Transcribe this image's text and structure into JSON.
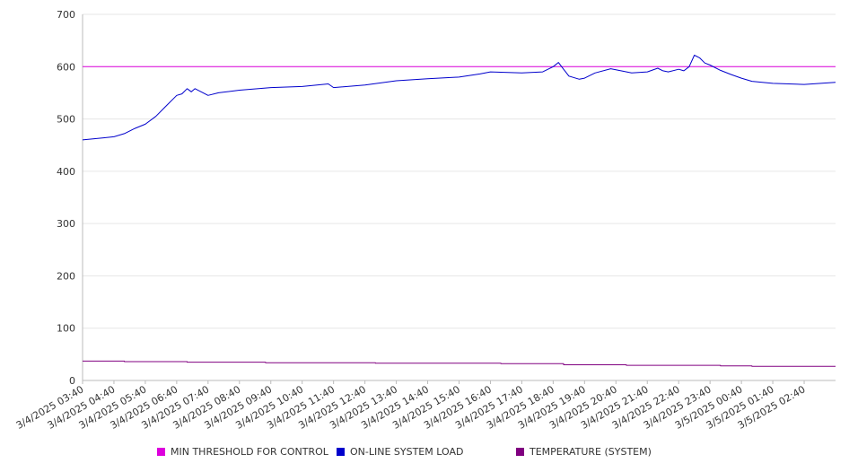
{
  "chart_data": {
    "type": "line",
    "title": "",
    "xlabel": "",
    "ylabel": "",
    "ylim": [
      0,
      700
    ],
    "yticks": [
      "0",
      "100",
      "200",
      "300",
      "400",
      "500",
      "600",
      "700"
    ],
    "x_tick_labels": [
      "3/4/2025 03:40",
      "3/4/2025 04:40",
      "3/4/2025 05:40",
      "3/4/2025 06:40",
      "3/4/2025 07:40",
      "3/4/2025 08:40",
      "3/4/2025 09:40",
      "3/4/2025 10:40",
      "3/4/2025 11:40",
      "3/4/2025 12:40",
      "3/4/2025 13:40",
      "3/4/2025 14:40",
      "3/4/2025 15:40",
      "3/4/2025 16:40",
      "3/4/2025 17:40",
      "3/4/2025 18:40",
      "3/4/2025 19:40",
      "3/4/2025 20:40",
      "3/4/2025 21:40",
      "3/4/2025 22:40",
      "3/4/2025 23:40",
      "3/5/2025 00:40",
      "3/5/2025 01:40",
      "3/5/2025 02:40"
    ],
    "grid": true,
    "legend_position": "bottom",
    "series": [
      {
        "name": "MIN THRESHOLD FOR CONTROL",
        "color": "#dd00dd",
        "step": false,
        "points": [
          [
            "3/4/2025 03:40",
            600
          ],
          [
            "3/5/2025 03:40",
            600
          ]
        ]
      },
      {
        "name": "ON-LINE SYSTEM LOAD",
        "color": "#0000cc",
        "step": false,
        "points": [
          [
            "3/4/2025 03:40",
            460
          ],
          [
            "3/4/2025 04:00",
            462
          ],
          [
            "3/4/2025 04:20",
            464
          ],
          [
            "3/4/2025 04:40",
            466
          ],
          [
            "3/4/2025 05:00",
            472
          ],
          [
            "3/4/2025 05:20",
            482
          ],
          [
            "3/4/2025 05:40",
            490
          ],
          [
            "3/4/2025 06:00",
            505
          ],
          [
            "3/4/2025 06:20",
            525
          ],
          [
            "3/4/2025 06:40",
            545
          ],
          [
            "3/4/2025 06:50",
            548
          ],
          [
            "3/4/2025 07:00",
            558
          ],
          [
            "3/4/2025 07:08",
            552
          ],
          [
            "3/4/2025 07:15",
            558
          ],
          [
            "3/4/2025 07:40",
            545
          ],
          [
            "3/4/2025 08:00",
            550
          ],
          [
            "3/4/2025 08:40",
            555
          ],
          [
            "3/4/2025 09:40",
            560
          ],
          [
            "3/4/2025 10:40",
            562
          ],
          [
            "3/4/2025 11:30",
            567
          ],
          [
            "3/4/2025 11:40",
            560
          ],
          [
            "3/4/2025 12:40",
            565
          ],
          [
            "3/4/2025 13:40",
            573
          ],
          [
            "3/4/2025 14:40",
            577
          ],
          [
            "3/4/2025 15:40",
            580
          ],
          [
            "3/4/2025 16:20",
            586
          ],
          [
            "3/4/2025 16:40",
            590
          ],
          [
            "3/4/2025 17:40",
            588
          ],
          [
            "3/4/2025 18:20",
            590
          ],
          [
            "3/4/2025 18:40",
            600
          ],
          [
            "3/4/2025 18:50",
            608
          ],
          [
            "3/4/2025 19:00",
            595
          ],
          [
            "3/4/2025 19:10",
            582
          ],
          [
            "3/4/2025 19:30",
            576
          ],
          [
            "3/4/2025 19:40",
            578
          ],
          [
            "3/4/2025 20:00",
            588
          ],
          [
            "3/4/2025 20:30",
            596
          ],
          [
            "3/4/2025 20:40",
            594
          ],
          [
            "3/4/2025 21:10",
            588
          ],
          [
            "3/4/2025 21:40",
            590
          ],
          [
            "3/4/2025 22:00",
            597
          ],
          [
            "3/4/2025 22:10",
            592
          ],
          [
            "3/4/2025 22:20",
            590
          ],
          [
            "3/4/2025 22:40",
            595
          ],
          [
            "3/4/2025 22:50",
            592
          ],
          [
            "3/4/2025 23:00",
            600
          ],
          [
            "3/4/2025 23:10",
            622
          ],
          [
            "3/4/2025 23:20",
            617
          ],
          [
            "3/4/2025 23:30",
            607
          ],
          [
            "3/4/2025 23:40",
            603
          ],
          [
            "3/5/2025 00:00",
            593
          ],
          [
            "3/5/2025 00:20",
            585
          ],
          [
            "3/5/2025 00:40",
            578
          ],
          [
            "3/5/2025 01:00",
            572
          ],
          [
            "3/5/2025 01:40",
            568
          ],
          [
            "3/5/2025 02:40",
            566
          ],
          [
            "3/5/2025 03:40",
            570
          ]
        ]
      },
      {
        "name": "TEMPERATURE (SYSTEM)",
        "color": "#800080",
        "step": true,
        "points": [
          [
            "3/4/2025 03:40",
            37
          ],
          [
            "3/4/2025 05:00",
            36
          ],
          [
            "3/4/2025 07:00",
            35
          ],
          [
            "3/4/2025 09:30",
            34
          ],
          [
            "3/4/2025 13:00",
            33
          ],
          [
            "3/4/2025 17:00",
            32
          ],
          [
            "3/4/2025 19:00",
            30
          ],
          [
            "3/4/2025 21:00",
            29
          ],
          [
            "3/5/2025 00:00",
            28
          ],
          [
            "3/5/2025 01:00",
            27
          ],
          [
            "3/5/2025 03:40",
            27
          ]
        ]
      }
    ]
  }
}
